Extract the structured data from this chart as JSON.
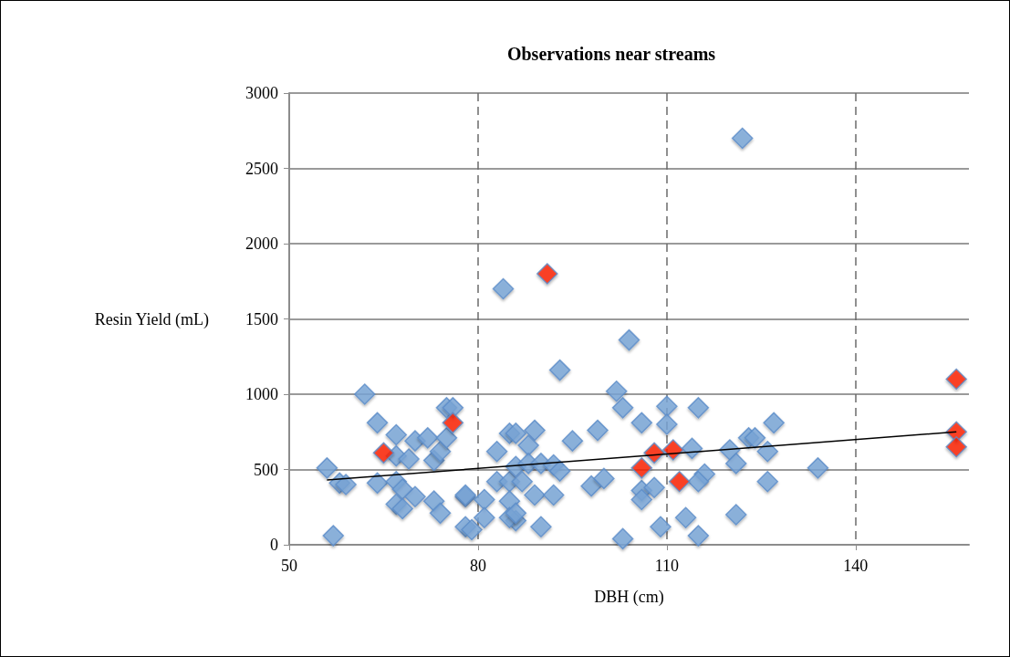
{
  "chart_data": {
    "type": "scatter",
    "title": "Observations near streams",
    "xlabel": "DBH (cm)",
    "ylabel": "Resin Yield (mL)",
    "xlim": [
      50,
      158
    ],
    "xticks": [
      50,
      80,
      110,
      140
    ],
    "ylim": [
      0,
      3000
    ],
    "yticks": [
      0,
      500,
      1000,
      1500,
      2000,
      2500,
      3000
    ],
    "grid": true,
    "marker": "diamond",
    "series": [
      {
        "color": "#7ba7da",
        "x": [
          56,
          57,
          58,
          59,
          62,
          64,
          64,
          67,
          67,
          67,
          69,
          70,
          72,
          73,
          74,
          75,
          75,
          76,
          68,
          70,
          67,
          68,
          73,
          74,
          78,
          78,
          78,
          79,
          81,
          83,
          83,
          85,
          85,
          81,
          85,
          86,
          84,
          93,
          102,
          103,
          110,
          115,
          106,
          110,
          99,
          95,
          89,
          86,
          88,
          114,
          120,
          121,
          123,
          86,
          88,
          90,
          92,
          93,
          87,
          89,
          92,
          85,
          86,
          90,
          98,
          100,
          103,
          106,
          108,
          106,
          109,
          113,
          115,
          116,
          115,
          121,
          127,
          124,
          126,
          126,
          134,
          122,
          104
        ],
        "values": [
          510,
          60,
          410,
          400,
          1000,
          810,
          410,
          730,
          420,
          590,
          570,
          690,
          710,
          560,
          620,
          710,
          910,
          910,
          370,
          320,
          270,
          240,
          290,
          210,
          320,
          330,
          120,
          100,
          300,
          620,
          420,
          420,
          740,
          180,
          290,
          160,
          1700,
          1160,
          1020,
          910,
          920,
          910,
          810,
          800,
          760,
          690,
          760,
          740,
          660,
          640,
          630,
          540,
          710,
          520,
          540,
          540,
          530,
          490,
          420,
          330,
          330,
          180,
          210,
          120,
          390,
          440,
          40,
          360,
          380,
          300,
          120,
          180,
          60,
          470,
          420,
          200,
          810,
          710,
          620,
          420,
          510,
          2700,
          1360
        ]
      },
      {
        "color": "#ff2200",
        "x": [
          65,
          76,
          91,
          106,
          108,
          111,
          112,
          156,
          156,
          156
        ],
        "values": [
          610,
          810,
          1800,
          510,
          610,
          630,
          420,
          1100,
          750,
          650
        ]
      },
      {
        "type": "line",
        "color": "#000000",
        "x": [
          56,
          156
        ],
        "values": [
          430,
          750
        ],
        "marker": "none"
      }
    ]
  }
}
